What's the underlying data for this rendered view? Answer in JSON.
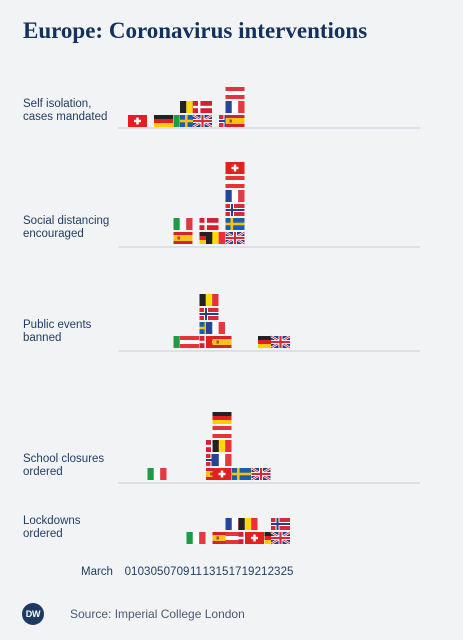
{
  "chart_data": {
    "type": "scatter",
    "title": "Europe: Coronavirus interventions",
    "x_axis": {
      "label": "March",
      "ticks": [
        "01",
        "03",
        "05",
        "07",
        "09",
        "11",
        "13",
        "15",
        "17",
        "19",
        "21",
        "23",
        "25"
      ],
      "range": [
        1,
        25
      ]
    },
    "series": [
      {
        "name": "Self isolation, cases mandated",
        "points": [
          {
            "day": 2,
            "country": "Switzerland"
          },
          {
            "day": 6,
            "country": "Germany"
          },
          {
            "day": 9,
            "country": "Italy"
          },
          {
            "day": 10,
            "country": "Sweden"
          },
          {
            "day": 10,
            "country": "Belgium"
          },
          {
            "day": 12,
            "country": "United Kingdom"
          },
          {
            "day": 12,
            "country": "Denmark"
          },
          {
            "day": 16,
            "country": "Norway"
          },
          {
            "day": 17,
            "country": "Spain"
          },
          {
            "day": 17,
            "country": "France"
          },
          {
            "day": 17,
            "country": "Austria"
          }
        ]
      },
      {
        "name": "Social distancing encouraged",
        "points": [
          {
            "day": 9,
            "country": "Spain"
          },
          {
            "day": 9,
            "country": "Italy"
          },
          {
            "day": 13,
            "country": "Germany"
          },
          {
            "day": 13,
            "country": "Denmark"
          },
          {
            "day": 14,
            "country": "Belgium"
          },
          {
            "day": 17,
            "country": "United Kingdom"
          },
          {
            "day": 17,
            "country": "Sweden"
          },
          {
            "day": 17,
            "country": "Norway"
          },
          {
            "day": 17,
            "country": "France"
          },
          {
            "day": 17,
            "country": "Austria"
          },
          {
            "day": 17,
            "country": "Switzerland"
          }
        ]
      },
      {
        "name": "Public events banned",
        "points": [
          {
            "day": 9,
            "country": "Italy"
          },
          {
            "day": 10,
            "country": "Austria"
          },
          {
            "day": 13,
            "country": "Denmark"
          },
          {
            "day": 13,
            "country": "Sweden"
          },
          {
            "day": 13,
            "country": "Norway"
          },
          {
            "day": 13,
            "country": "Belgium"
          },
          {
            "day": 14,
            "country": "Switzerland"
          },
          {
            "day": 14,
            "country": "France"
          },
          {
            "day": 15,
            "country": "Spain"
          },
          {
            "day": 22,
            "country": "Germany"
          },
          {
            "day": 24,
            "country": "United Kingdom"
          }
        ]
      },
      {
        "name": "School closures ordered",
        "points": [
          {
            "day": 5,
            "country": "Italy"
          },
          {
            "day": 14,
            "country": "Spain"
          },
          {
            "day": 14,
            "country": "Norway"
          },
          {
            "day": 14,
            "country": "Denmark"
          },
          {
            "day": 15,
            "country": "Switzerland"
          },
          {
            "day": 15,
            "country": "France"
          },
          {
            "day": 15,
            "country": "Belgium"
          },
          {
            "day": 15,
            "country": "Austria"
          },
          {
            "day": 15,
            "country": "Germany"
          },
          {
            "day": 18,
            "country": "Sweden"
          },
          {
            "day": 21,
            "country": "United Kingdom"
          }
        ]
      },
      {
        "name": "Lockdowns ordered",
        "points": [
          {
            "day": 11,
            "country": "Italy"
          },
          {
            "day": 15,
            "country": "Spain"
          },
          {
            "day": 17,
            "country": "Austria"
          },
          {
            "day": 17,
            "country": "France"
          },
          {
            "day": 19,
            "country": "Denmark"
          },
          {
            "day": 19,
            "country": "Belgium"
          },
          {
            "day": 20,
            "country": "Switzerland"
          },
          {
            "day": 23,
            "country": "Germany"
          },
          {
            "day": 24,
            "country": "United Kingdom"
          },
          {
            "day": 24,
            "country": "Norway"
          }
        ]
      }
    ],
    "row_labels": [
      [
        "Self isolation,",
        "cases mandated"
      ],
      [
        "Social distancing",
        "encouraged"
      ],
      [
        "Public events",
        "banned"
      ],
      [
        "School closures",
        "ordered"
      ],
      [
        "Lockdowns",
        "ordered"
      ]
    ]
  },
  "footer": {
    "logo_text": "DW",
    "source": "Source: Imperial College London"
  },
  "colors": {
    "text": "#1f3a5f",
    "divider": "#c9ced6",
    "background": "#f1f3f5"
  }
}
